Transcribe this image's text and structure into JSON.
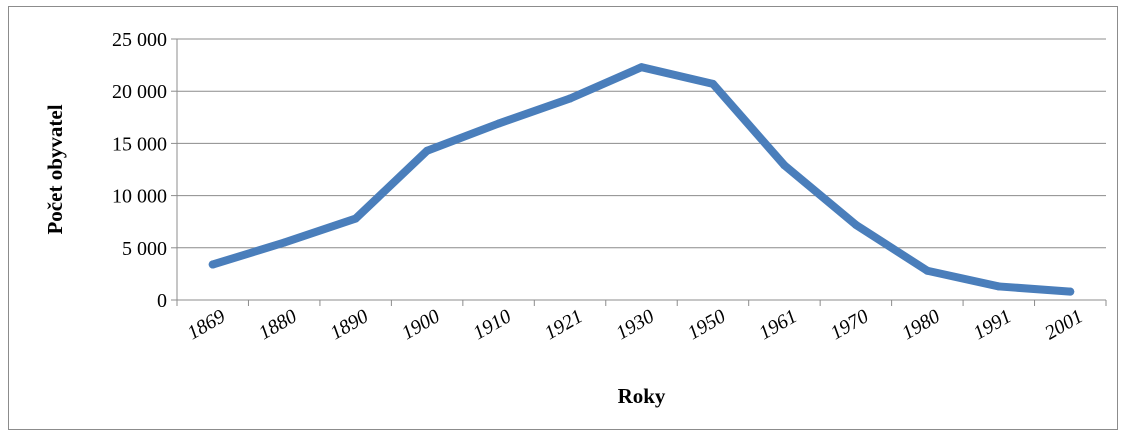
{
  "chart_data": {
    "type": "line",
    "title": "",
    "xlabel": "Roky",
    "ylabel": "Počet obyvatel",
    "categories": [
      "1869",
      "1880",
      "1890",
      "1900",
      "1910",
      "1921",
      "1930",
      "1950",
      "1961",
      "1970",
      "1980",
      "1991",
      "2001"
    ],
    "series": [
      {
        "values": [
          3400,
          5500,
          7800,
          14300,
          16900,
          19300,
          22300,
          20700,
          12900,
          7200,
          2800,
          1300,
          800
        ]
      }
    ],
    "y_ticks": [
      "0",
      "5 000",
      "10 000",
      "15 000",
      "20 000",
      "25 000"
    ],
    "ylim": [
      0,
      25000
    ],
    "grid": "horizontal",
    "legend": "none",
    "line_color": "#4a7ebb",
    "grid_color": "#8c8c8c"
  }
}
